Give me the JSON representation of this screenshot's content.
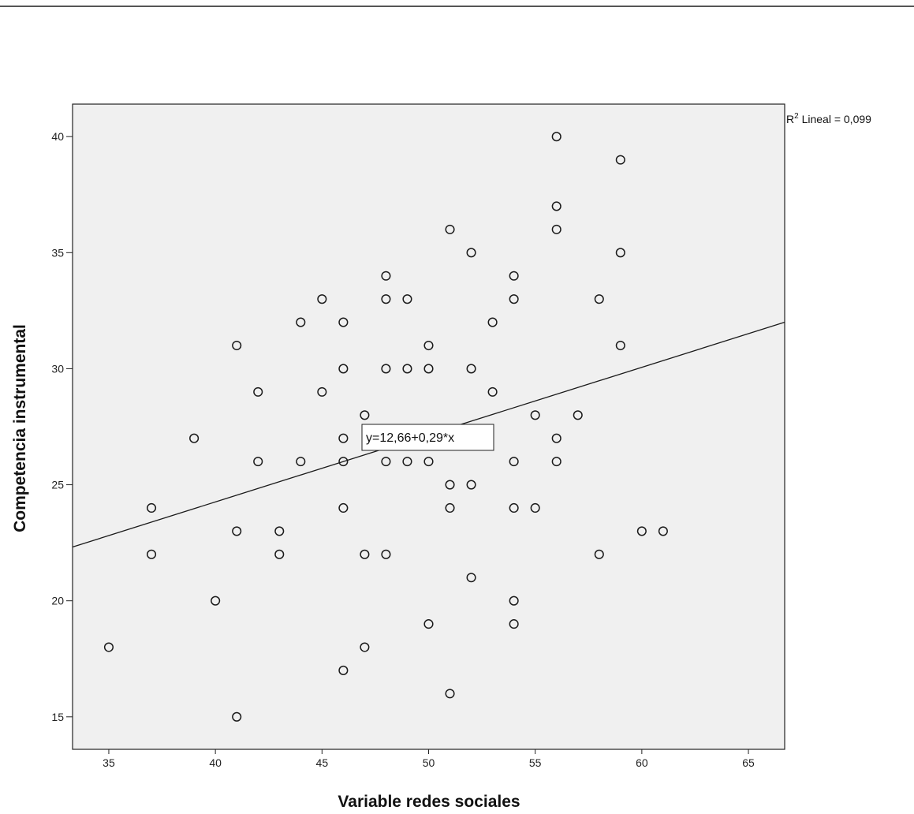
{
  "chart_data": {
    "type": "scatter",
    "title": "",
    "xlabel": "Variable redes sociales",
    "ylabel": "Competencia instrumental",
    "xlim": [
      33.3,
      66.7
    ],
    "ylim": [
      13.6,
      41.4
    ],
    "xticks": [
      35,
      40,
      45,
      50,
      55,
      60,
      65
    ],
    "yticks": [
      15,
      20,
      25,
      30,
      35,
      40
    ],
    "grid": false,
    "points": [
      [
        35,
        18
      ],
      [
        37,
        24
      ],
      [
        37,
        22
      ],
      [
        39,
        27
      ],
      [
        40,
        20
      ],
      [
        41,
        31
      ],
      [
        41,
        23
      ],
      [
        41,
        15
      ],
      [
        42,
        29
      ],
      [
        42,
        26
      ],
      [
        43,
        23
      ],
      [
        43,
        22
      ],
      [
        44,
        32
      ],
      [
        44,
        26
      ],
      [
        45,
        33
      ],
      [
        45,
        29
      ],
      [
        46,
        32
      ],
      [
        46,
        30
      ],
      [
        46,
        27
      ],
      [
        46,
        26
      ],
      [
        46,
        24
      ],
      [
        46,
        17
      ],
      [
        47,
        28
      ],
      [
        47,
        22
      ],
      [
        47,
        18
      ],
      [
        48,
        34
      ],
      [
        48,
        33
      ],
      [
        48,
        30
      ],
      [
        48,
        26
      ],
      [
        48,
        22
      ],
      [
        49,
        33
      ],
      [
        49,
        30
      ],
      [
        49,
        26
      ],
      [
        50,
        31
      ],
      [
        50,
        30
      ],
      [
        50,
        26
      ],
      [
        50,
        19
      ],
      [
        51,
        36
      ],
      [
        51,
        25
      ],
      [
        51,
        24
      ],
      [
        51,
        16
      ],
      [
        52,
        35
      ],
      [
        52,
        30
      ],
      [
        52,
        25
      ],
      [
        52,
        21
      ],
      [
        53,
        32
      ],
      [
        53,
        29
      ],
      [
        54,
        34
      ],
      [
        54,
        33
      ],
      [
        54,
        26
      ],
      [
        54,
        24
      ],
      [
        54,
        20
      ],
      [
        54,
        19
      ],
      [
        55,
        28
      ],
      [
        55,
        24
      ],
      [
        56,
        40
      ],
      [
        56,
        37
      ],
      [
        56,
        36
      ],
      [
        56,
        27
      ],
      [
        56,
        26
      ],
      [
        57,
        28
      ],
      [
        58,
        33
      ],
      [
        58,
        22
      ],
      [
        59,
        39
      ],
      [
        59,
        35
      ],
      [
        59,
        31
      ],
      [
        60,
        23
      ],
      [
        61,
        23
      ]
    ],
    "fit_line": {
      "intercept": 12.66,
      "slope": 0.29
    },
    "equation_label": "y=12,66+0,29*x",
    "r2_label_prefix": "R",
    "r2_label_sup": "2",
    "r2_label_rest": " Lineal = 0,099",
    "colors": {
      "plot_background": "#f0f0f0",
      "marker": "#1a1a1a",
      "line": "#1a1a1a"
    }
  }
}
